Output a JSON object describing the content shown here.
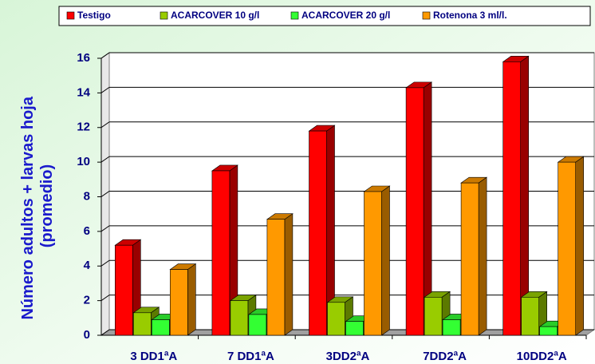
{
  "chart_data": {
    "type": "bar3d",
    "ylabel": [
      "Número adultos + larvas hoja",
      "(promedio)"
    ],
    "categories": [
      "3 DD1ªA",
      "7 DD1ªA",
      "3DD2ªA",
      "7DD2ªA",
      "10DD2ªA"
    ],
    "series": [
      {
        "name": "Testigo",
        "color": "#ff0000",
        "values": [
          5.2,
          9.5,
          11.8,
          14.3,
          15.8
        ]
      },
      {
        "name": "ACARCOVER 10 g/l",
        "color": "#99cc00",
        "values": [
          1.3,
          2.0,
          1.9,
          2.2,
          2.2
        ]
      },
      {
        "name": "ACARCOVER 20 g/l",
        "color": "#33ff33",
        "values": [
          0.9,
          1.2,
          0.8,
          0.9,
          0.5
        ]
      },
      {
        "name": "Rotenona 3 ml/l.",
        "color": "#ff9900",
        "values": [
          3.8,
          6.7,
          8.3,
          8.8,
          10.0
        ]
      }
    ],
    "ylim": [
      0,
      16
    ],
    "yticks": [
      0,
      2,
      4,
      6,
      8,
      10,
      12,
      14,
      16
    ],
    "grid": true,
    "legend": "top"
  }
}
